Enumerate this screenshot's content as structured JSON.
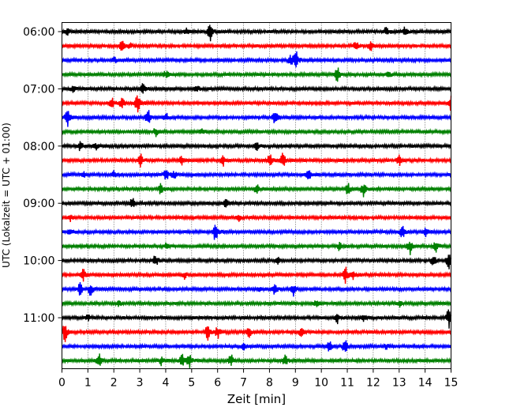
{
  "chart_data": {
    "type": "line",
    "title": "",
    "xlabel": "Zeit  [min]",
    "ylabel": "UTC (Lokalzeit = UTC + 01:00)",
    "xlim": [
      0,
      15
    ],
    "x_ticks": [
      "0",
      "1",
      "2",
      "3",
      "4",
      "5",
      "6",
      "7",
      "8",
      "9",
      "10",
      "11",
      "12",
      "13",
      "14",
      "15"
    ],
    "y_ticks": [
      "06:00",
      "07:00",
      "08:00",
      "09:00",
      "10:00",
      "11:00"
    ],
    "grid": "vertical dotted",
    "row_minutes": 15,
    "first_row": "06:00",
    "rows": 24,
    "colors": [
      "#000000",
      "#ff0000",
      "#0000ff",
      "#008000"
    ],
    "events": [
      [
        [
          5.7,
          0.9
        ],
        [
          12.5,
          0.6
        ],
        [
          13.2,
          0.5
        ],
        [
          0.2,
          0.3
        ],
        [
          4.8,
          0.4
        ]
      ],
      [
        [
          2.3,
          0.5
        ],
        [
          11.3,
          0.6
        ],
        [
          11.9,
          0.4
        ],
        [
          2.6,
          0.3
        ]
      ],
      [
        [
          9.0,
          1.0
        ],
        [
          8.8,
          0.6
        ],
        [
          2.0,
          0.3
        ]
      ],
      [
        [
          10.6,
          0.8
        ],
        [
          4.0,
          0.4
        ],
        [
          12.6,
          0.3
        ]
      ],
      [
        [
          3.1,
          0.6
        ],
        [
          0.4,
          0.3
        ],
        [
          5.2,
          0.3
        ]
      ],
      [
        [
          2.9,
          1.0
        ],
        [
          1.9,
          0.6
        ],
        [
          2.3,
          0.5
        ],
        [
          15.0,
          0.9
        ]
      ],
      [
        [
          0.2,
          0.9
        ],
        [
          3.3,
          0.8
        ],
        [
          8.2,
          0.7
        ],
        [
          4.0,
          0.4
        ]
      ],
      [
        [
          3.6,
          0.4
        ],
        [
          5.4,
          0.3
        ]
      ],
      [
        [
          0.7,
          0.5
        ],
        [
          7.5,
          0.4
        ],
        [
          1.3,
          0.3
        ]
      ],
      [
        [
          3.0,
          0.7
        ],
        [
          8.0,
          0.6
        ],
        [
          8.5,
          0.8
        ],
        [
          6.2,
          0.5
        ],
        [
          13.0,
          0.6
        ],
        [
          4.6,
          0.4
        ]
      ],
      [
        [
          9.5,
          0.6
        ],
        [
          4.0,
          0.6
        ],
        [
          4.3,
          0.4
        ],
        [
          2.0,
          0.4
        ],
        [
          0.8,
          0.3
        ]
      ],
      [
        [
          3.8,
          0.7
        ],
        [
          7.5,
          0.6
        ],
        [
          11.0,
          0.6
        ],
        [
          11.6,
          0.7
        ]
      ],
      [
        [
          2.7,
          0.6
        ],
        [
          6.3,
          0.4
        ]
      ],
      [
        [
          0.3,
          0.3
        ],
        [
          6.8,
          0.3
        ]
      ],
      [
        [
          5.9,
          1.0
        ],
        [
          13.1,
          0.7
        ],
        [
          0.3,
          0.4
        ],
        [
          14.0,
          0.4
        ]
      ],
      [
        [
          13.4,
          0.8
        ],
        [
          14.4,
          0.7
        ],
        [
          4.0,
          0.4
        ],
        [
          10.7,
          0.5
        ]
      ],
      [
        [
          3.6,
          0.6
        ],
        [
          14.3,
          0.7
        ],
        [
          14.9,
          0.8
        ],
        [
          8.3,
          0.3
        ]
      ],
      [
        [
          10.9,
          1.0
        ],
        [
          0.8,
          0.6
        ],
        [
          4.7,
          0.4
        ],
        [
          11.2,
          0.5
        ]
      ],
      [
        [
          0.7,
          0.7
        ],
        [
          1.1,
          0.7
        ],
        [
          8.2,
          0.6
        ],
        [
          8.9,
          0.7
        ],
        [
          7.6,
          0.3
        ]
      ],
      [
        [
          2.2,
          0.3
        ],
        [
          9.8,
          0.3
        ],
        [
          13.0,
          0.3
        ]
      ],
      [
        [
          10.6,
          0.6
        ],
        [
          11.6,
          0.4
        ],
        [
          14.9,
          1.0
        ],
        [
          1.0,
          0.3
        ]
      ],
      [
        [
          0.1,
          1.0
        ],
        [
          5.6,
          0.8
        ],
        [
          6.0,
          0.7
        ],
        [
          7.2,
          0.5
        ],
        [
          9.2,
          0.4
        ]
      ],
      [
        [
          10.3,
          0.7
        ],
        [
          10.9,
          0.8
        ],
        [
          7.0,
          0.4
        ],
        [
          12.5,
          0.3
        ]
      ],
      [
        [
          1.4,
          0.8
        ],
        [
          4.6,
          0.9
        ],
        [
          4.9,
          0.6
        ],
        [
          6.5,
          0.6
        ],
        [
          8.6,
          0.7
        ],
        [
          3.8,
          0.4
        ]
      ]
    ]
  }
}
